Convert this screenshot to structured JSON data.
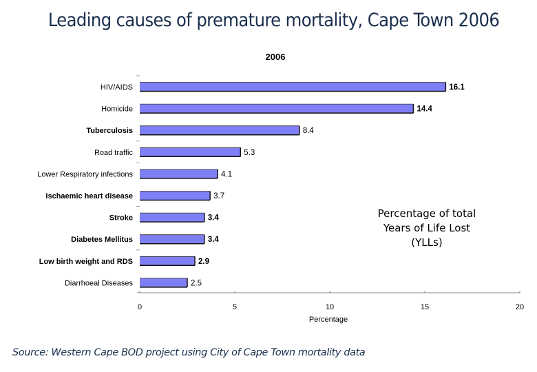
{
  "page": {
    "title": "Leading causes of premature mortality, Cape Town 2006",
    "annotation_lines": [
      "Percentage of total",
      "Years of Life Lost",
      "(YLLs)"
    ],
    "source": "Source: Western Cape BOD project using City of Cape Town mortality data"
  },
  "chart_data": {
    "type": "bar",
    "orientation": "horizontal",
    "title": "2006",
    "xlabel": "Percentage",
    "ylabel": "",
    "xlim": [
      0,
      20
    ],
    "xticks": [
      0,
      5,
      10,
      15,
      20
    ],
    "grid": false,
    "bar_color": "#7f7ff5",
    "categories": [
      "HIV/AIDS",
      "Homicide",
      "Tuberculosis",
      "Road traffic",
      "Lower Respiratory infections",
      "Ischaemic heart disease",
      "Stroke",
      "Diabetes Mellitus",
      "Low birth weight and RDS",
      "Diarrhoeal Diseases"
    ],
    "values": [
      16.1,
      14.4,
      8.4,
      5.3,
      4.1,
      3.7,
      3.4,
      3.4,
      2.9,
      2.5
    ],
    "labels": [
      "16.1",
      "14.4",
      "8.4",
      "5.3",
      "4.1",
      "3.7",
      "3.4",
      "3.4",
      "2.9",
      "2.5"
    ]
  }
}
